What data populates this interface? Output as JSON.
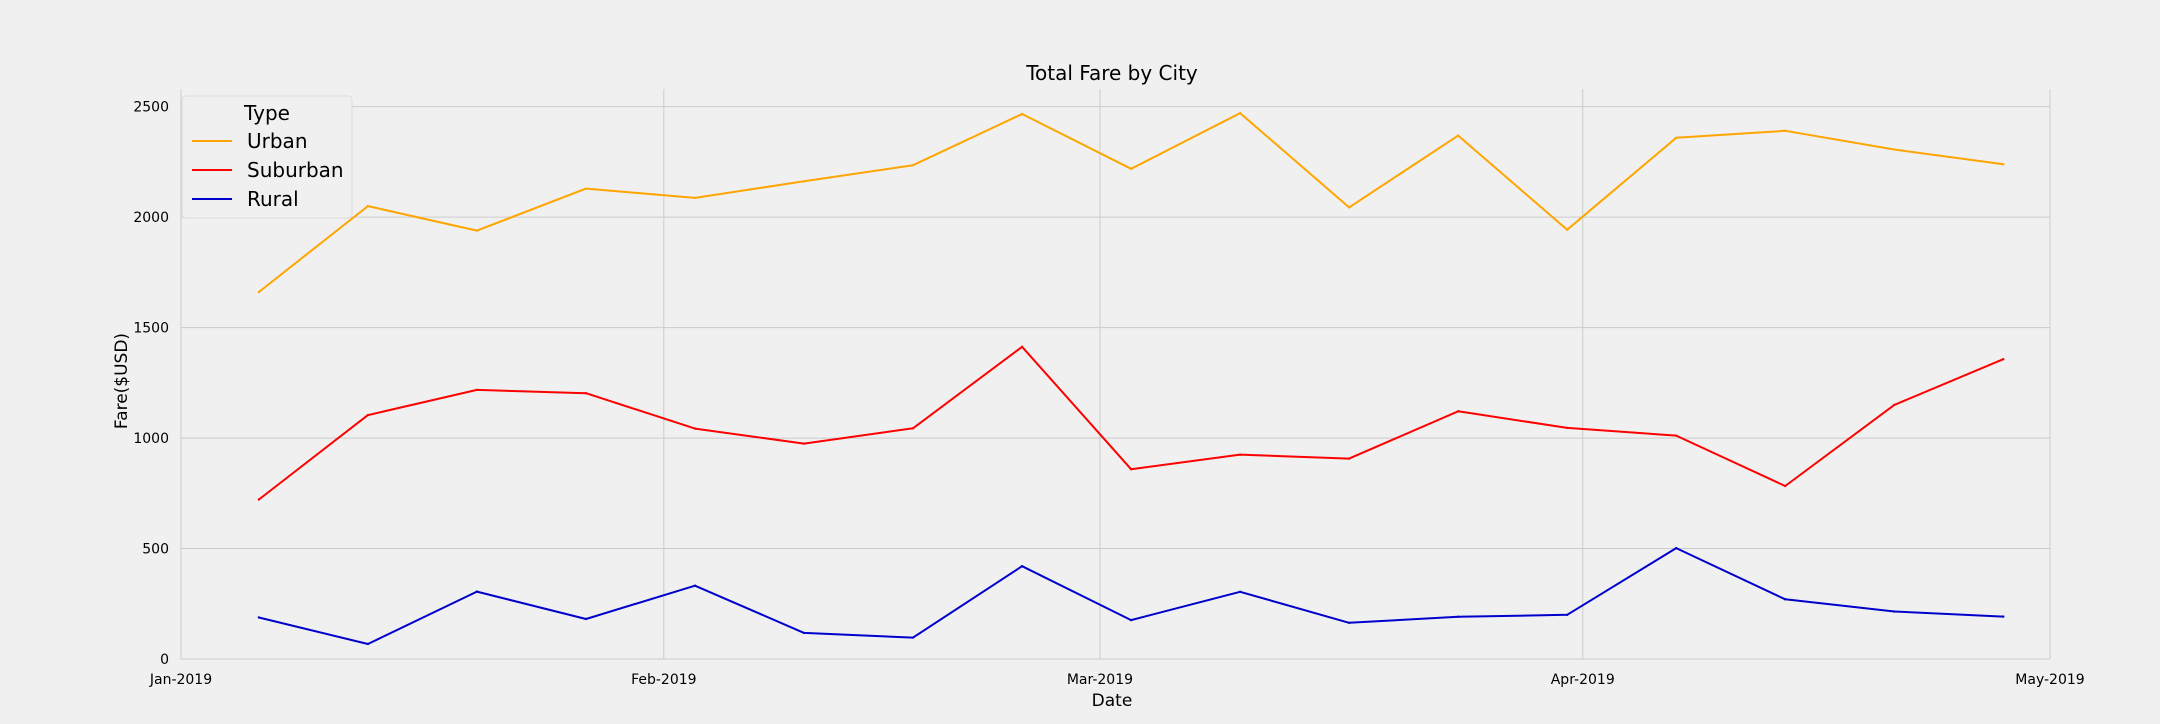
{
  "chart_data": {
    "type": "line",
    "title": "Total Fare by City",
    "xlabel": "Date",
    "ylabel": "Fare($USD)",
    "x": [
      "2019-01-06",
      "2019-01-13",
      "2019-01-20",
      "2019-01-27",
      "2019-02-03",
      "2019-02-10",
      "2019-02-17",
      "2019-02-24",
      "2019-03-03",
      "2019-03-10",
      "2019-03-17",
      "2019-03-24",
      "2019-03-31",
      "2019-04-07",
      "2019-04-14",
      "2019-04-21",
      "2019-04-28"
    ],
    "xlim": [
      "2019-01-01",
      "2019-05-01"
    ],
    "xticks": [
      {
        "date": "2019-01-01",
        "label": "Jan-2019"
      },
      {
        "date": "2019-02-01",
        "label": "Feb-2019"
      },
      {
        "date": "2019-03-01",
        "label": "Mar-2019"
      },
      {
        "date": "2019-04-01",
        "label": "Apr-2019"
      },
      {
        "date": "2019-05-01",
        "label": "May-2019"
      }
    ],
    "ylim": [
      0,
      2580
    ],
    "yticks": [
      0,
      500,
      1000,
      1500,
      2000,
      2500
    ],
    "grid": true,
    "legend": {
      "title": "Type",
      "placement": "upper-left"
    },
    "series": [
      {
        "name": "Urban",
        "color": "#FFA500",
        "values": [
          1661,
          2050,
          1939,
          2129,
          2087,
          2162,
          2235,
          2467,
          2219,
          2471,
          2044,
          2369,
          1943,
          2359,
          2391,
          2306,
          2239
        ]
      },
      {
        "name": "Suburban",
        "color": "#FF0000",
        "values": [
          722,
          1104,
          1218,
          1203,
          1043,
          975,
          1044,
          1413,
          859,
          925,
          907,
          1121,
          1046,
          1011,
          783,
          1150,
          1357
        ]
      },
      {
        "name": "Rural",
        "color": "#0000CC",
        "values": [
          188,
          68,
          305,
          181,
          332,
          118,
          97,
          420,
          176,
          304,
          164,
          191,
          200,
          502,
          270,
          215,
          192
        ]
      }
    ]
  }
}
